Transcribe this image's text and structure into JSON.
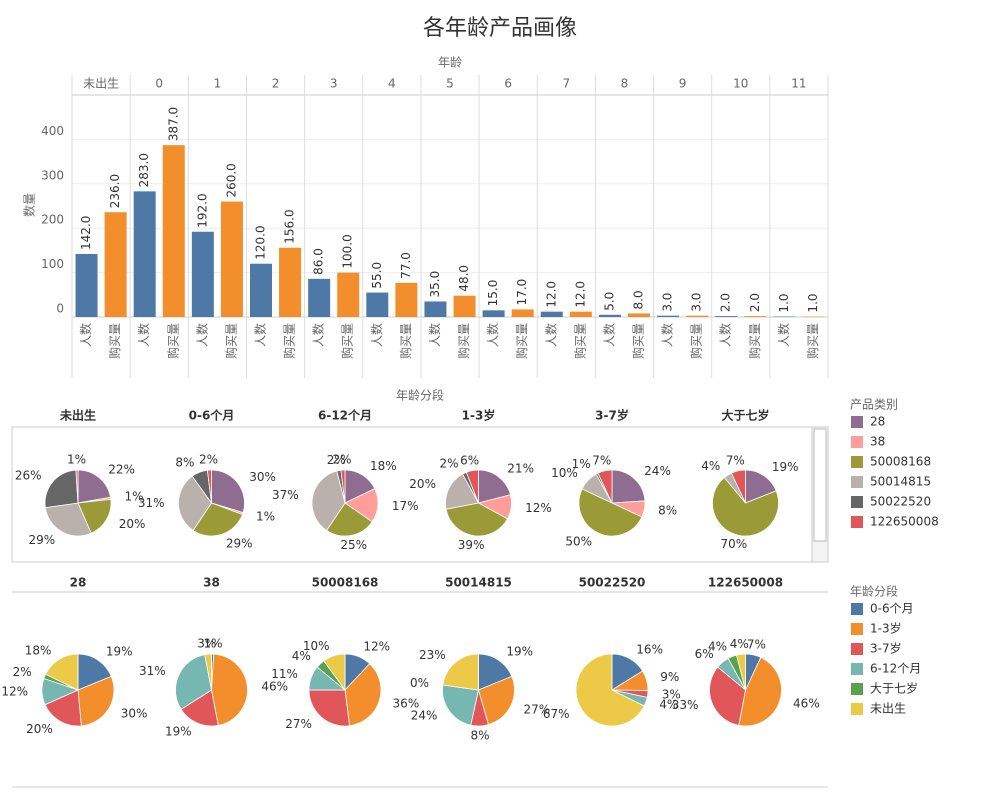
{
  "chart_data": [
    {
      "type": "bar",
      "title": "各年龄产品画像",
      "x_title": "年龄",
      "y_title": "数量",
      "categories": [
        "未出生",
        "0",
        "1",
        "2",
        "3",
        "4",
        "5",
        "6",
        "7",
        "8",
        "9",
        "10",
        "11"
      ],
      "series": [
        {
          "name": "人数",
          "color": "#4e79a7",
          "values": [
            142,
            283,
            192,
            120,
            86,
            55,
            35,
            15,
            12,
            5,
            3,
            2,
            1
          ],
          "value_labels": [
            "142.0",
            "283.0",
            "192.0",
            "120.0",
            "86.0",
            "55.0",
            "35.0",
            "15.0",
            "12.0",
            "5.0",
            "3.0",
            "2.0",
            "1.0"
          ]
        },
        {
          "name": "购买量",
          "color": "#f28e2b",
          "values": [
            236,
            387,
            260,
            156,
            100,
            77,
            48,
            17,
            12,
            8,
            3,
            2,
            1
          ],
          "value_labels": [
            "236.0",
            "387.0",
            "260.0",
            "156.0",
            "100.0",
            "77.0",
            "48.0",
            "17.0",
            "12.0",
            "8.0",
            "3.0",
            "2.0",
            "1.0"
          ]
        }
      ],
      "ylim": [
        0,
        500
      ],
      "yticks": [
        0,
        100,
        200,
        300,
        400
      ],
      "grid": true
    },
    {
      "type": "pie",
      "facet_title": "年龄分段",
      "legend_title": "产品类别",
      "categories": [
        "28",
        "38",
        "50008168",
        "50014815",
        "50022520",
        "122650008"
      ],
      "colors": [
        "#8f6d91",
        "#ff9d9a",
        "#9a9a36",
        "#bab0ac",
        "#666666",
        "#e15759"
      ],
      "series": [
        {
          "name": "未出生",
          "values": [
            22,
            1,
            20,
            29,
            26,
            1
          ],
          "value_labels": [
            "22%",
            "1%",
            "20%",
            "29%",
            "26%",
            "1%"
          ]
        },
        {
          "name": "0-6个月",
          "values": [
            30,
            1,
            29,
            31,
            8,
            2
          ],
          "value_labels": [
            "30%",
            "1%",
            "29%",
            "31%",
            "8%",
            "2%"
          ]
        },
        {
          "name": "6-12个月",
          "values": [
            18,
            17,
            25,
            37,
            2,
            2
          ],
          "value_labels": [
            "18%",
            "17%",
            "25%",
            "37%",
            "2%",
            "2%"
          ]
        },
        {
          "name": "1-3岁",
          "values": [
            21,
            12,
            39,
            20,
            2,
            6
          ],
          "value_labels": [
            "21%",
            "12%",
            "39%",
            "20%",
            "2%",
            "6%"
          ]
        },
        {
          "name": "3-7岁",
          "values": [
            24,
            8,
            50,
            10,
            1,
            7
          ],
          "value_labels": [
            "24%",
            "8%",
            "50%",
            "10%",
            "1%",
            "7%"
          ]
        },
        {
          "name": "大于七岁",
          "values": [
            19,
            null,
            70,
            4,
            null,
            7
          ],
          "value_labels": [
            "19%",
            null,
            "70%",
            "4%",
            null,
            "7%"
          ]
        }
      ]
    },
    {
      "type": "pie",
      "legend_title": "年龄分段",
      "categories": [
        "0-6个月",
        "1-3岁",
        "3-7岁",
        "6-12个月",
        "大于七岁",
        "未出生"
      ],
      "colors": [
        "#4e79a7",
        "#f28e2b",
        "#e15759",
        "#76b7b2",
        "#59a14f",
        "#edc948"
      ],
      "series": [
        {
          "name": "28",
          "values": [
            19,
            30,
            20,
            12,
            2,
            18
          ],
          "value_labels": [
            "19%",
            "30%",
            "20%",
            "12%",
            "2%",
            "18%"
          ]
        },
        {
          "name": "38",
          "values": [
            1,
            46,
            19,
            31,
            null,
            3
          ],
          "value_labels": [
            "1%",
            "46%",
            "19%",
            "31%",
            null,
            "3%"
          ]
        },
        {
          "name": "50008168",
          "values": [
            12,
            36,
            27,
            11,
            4,
            10
          ],
          "value_labels": [
            "12%",
            "36%",
            "27%",
            "11%",
            "4%",
            "10%"
          ]
        },
        {
          "name": "50014815",
          "values": [
            19,
            27,
            8,
            24,
            0,
            23
          ],
          "value_labels": [
            "19%",
            "27%",
            "8%",
            "24%",
            "0%",
            "23%"
          ]
        },
        {
          "name": "50022520",
          "values": [
            16,
            9,
            3,
            4,
            null,
            67
          ],
          "value_labels": [
            "16%",
            "9%",
            "3%",
            "4%",
            null,
            "67%"
          ]
        },
        {
          "name": "122650008",
          "values": [
            7,
            46,
            33,
            6,
            4,
            4
          ],
          "value_labels": [
            "7%",
            "46%",
            "33%",
            "6%",
            "4%",
            "4%"
          ]
        }
      ]
    }
  ]
}
